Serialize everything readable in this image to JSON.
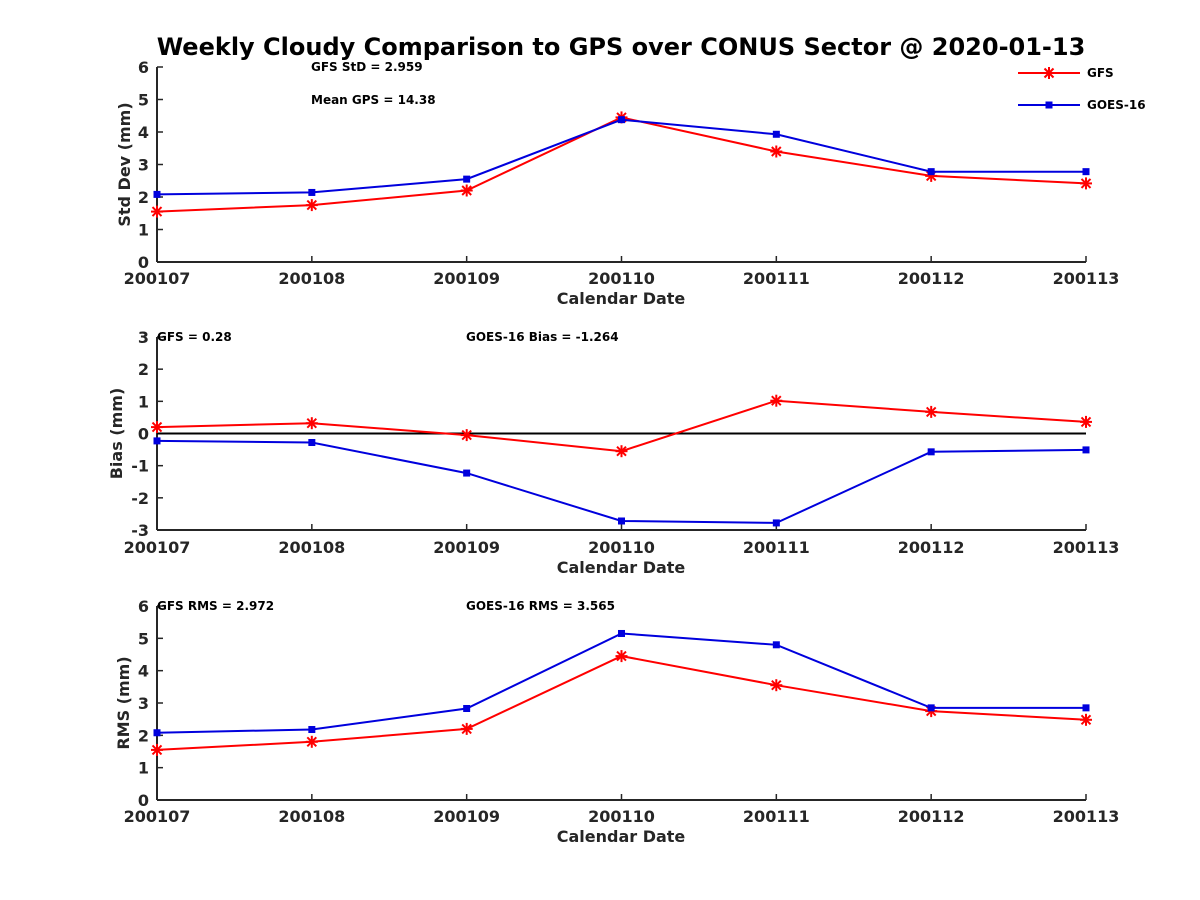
{
  "title": "Weekly Cloudy Comparison to GPS over CONUS Sector @ 2020-01-13",
  "colors": {
    "GFS": "#ff0000",
    "GOES-16": "#0000dd",
    "axis": "#262626",
    "zero_line": "#000000"
  },
  "legend": {
    "placement": "top-right",
    "entries": [
      "GFS",
      "GOES-16"
    ]
  },
  "chart_data": [
    {
      "type": "line",
      "xlabel": "Calendar Date",
      "ylabel": "Std Dev (mm)",
      "categories": [
        "200107",
        "200108",
        "200109",
        "200110",
        "200111",
        "200112",
        "200113"
      ],
      "ylim": [
        0,
        6
      ],
      "yticks": [
        "0",
        "1",
        "2",
        "3",
        "4",
        "5",
        "6"
      ],
      "annotations": [
        "GFS StD = 2.959",
        "Mean GPS = 14.38"
      ],
      "series": [
        {
          "name": "GFS",
          "marker": "asterisk",
          "values": [
            1.55,
            1.75,
            2.2,
            4.45,
            3.4,
            2.65,
            2.42
          ]
        },
        {
          "name": "GOES-16",
          "marker": "square",
          "values": [
            2.08,
            2.14,
            2.55,
            4.38,
            3.93,
            2.78,
            2.78
          ]
        }
      ]
    },
    {
      "type": "line",
      "xlabel": "Calendar Date",
      "ylabel": "Bias (mm)",
      "categories": [
        "200107",
        "200108",
        "200109",
        "200110",
        "200111",
        "200112",
        "200113"
      ],
      "ylim": [
        -3,
        3
      ],
      "yticks": [
        "-3",
        "-2",
        "-1",
        "0",
        "1",
        "2",
        "3"
      ],
      "zero_line": true,
      "annotations": [
        "GFS = 0.28",
        "GOES-16 Bias  = -1.264"
      ],
      "series": [
        {
          "name": "GFS",
          "marker": "asterisk",
          "values": [
            0.2,
            0.32,
            -0.05,
            -0.55,
            1.02,
            0.67,
            0.36
          ]
        },
        {
          "name": "GOES-16",
          "marker": "square",
          "values": [
            -0.23,
            -0.28,
            -1.23,
            -2.72,
            -2.78,
            -0.57,
            -0.51
          ]
        }
      ]
    },
    {
      "type": "line",
      "xlabel": "Calendar Date",
      "ylabel": "RMS (mm)",
      "categories": [
        "200107",
        "200108",
        "200109",
        "200110",
        "200111",
        "200112",
        "200113"
      ],
      "ylim": [
        0,
        6
      ],
      "yticks": [
        "0",
        "1",
        "2",
        "3",
        "4",
        "5",
        "6"
      ],
      "annotations": [
        "GFS RMS = 2.972",
        "GOES-16 RMS = 3.565"
      ],
      "series": [
        {
          "name": "GFS",
          "marker": "asterisk",
          "values": [
            1.55,
            1.8,
            2.2,
            4.45,
            3.55,
            2.75,
            2.48
          ]
        },
        {
          "name": "GOES-16",
          "marker": "square",
          "values": [
            2.08,
            2.18,
            2.83,
            5.15,
            4.8,
            2.85,
            2.85
          ]
        }
      ]
    }
  ]
}
